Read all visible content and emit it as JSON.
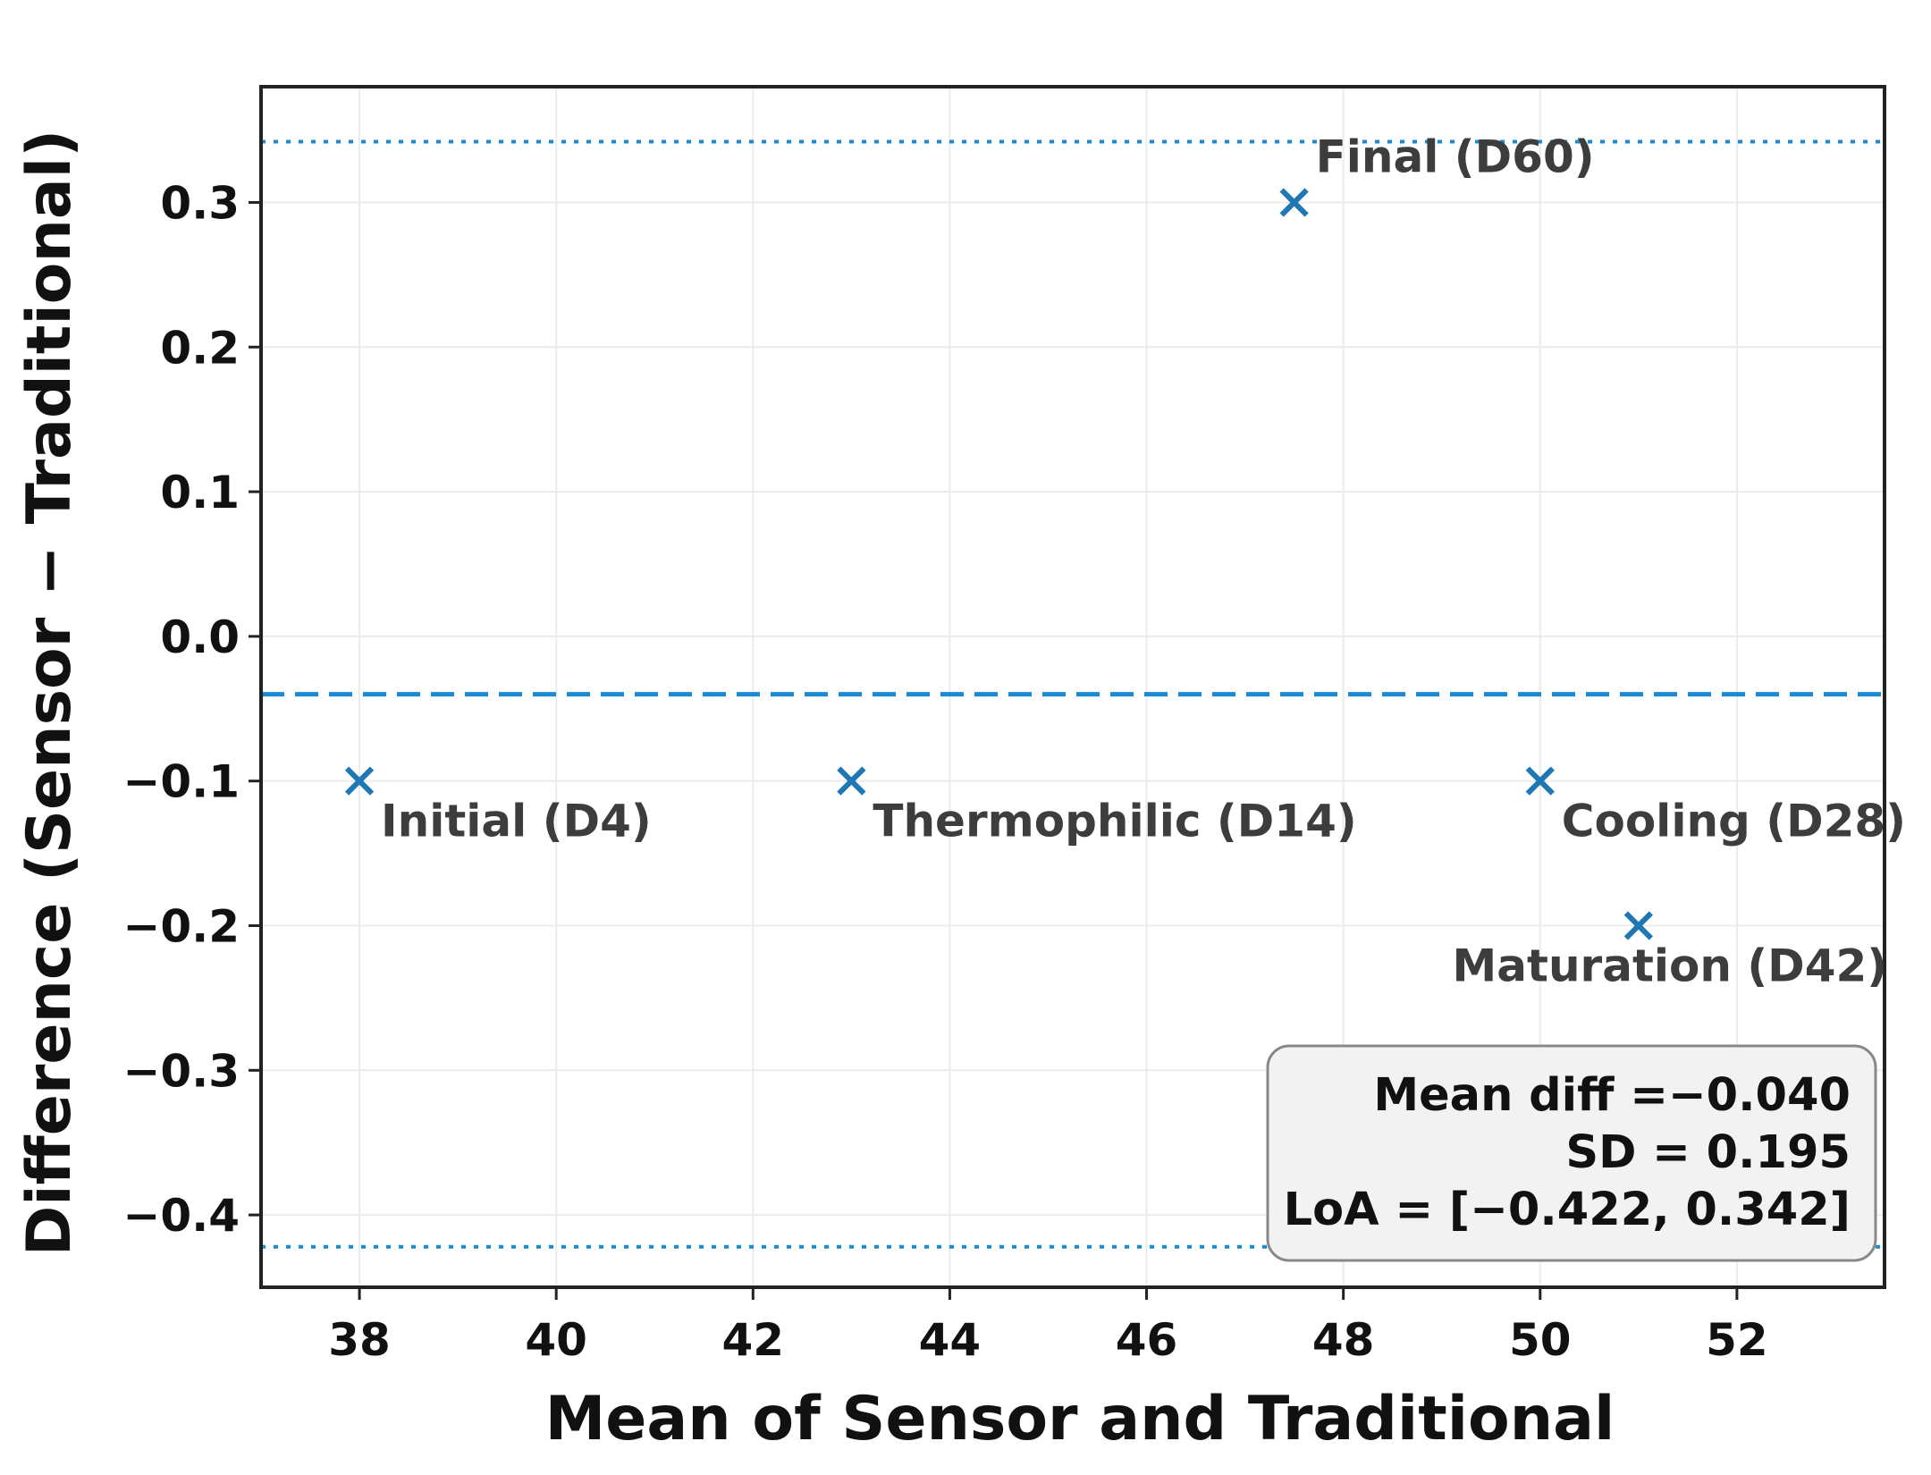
{
  "chart_data": {
    "type": "scatter",
    "title": "",
    "xlabel": "Mean of Sensor and Traditional",
    "ylabel": "Difference (Sensor − Traditional)",
    "xlim": [
      37.0,
      53.5
    ],
    "ylim": [
      -0.45,
      0.38
    ],
    "xticks": [
      38,
      40,
      42,
      44,
      46,
      48,
      50,
      52
    ],
    "xtick_labels": [
      "38",
      "40",
      "42",
      "44",
      "46",
      "48",
      "50",
      "52"
    ],
    "yticks": [
      0.3,
      0.2,
      0.1,
      0.0,
      -0.1,
      -0.2,
      -0.3,
      -0.4
    ],
    "ytick_labels": [
      "0.3",
      "0.2",
      "0.1",
      "0.0",
      "−0.1",
      "−0.2",
      "−0.3",
      "−0.4"
    ],
    "grid": true,
    "marker": "x",
    "points": [
      {
        "label": "Initial (D4)",
        "x": 38.0,
        "y": -0.1,
        "anchor": "below-right"
      },
      {
        "label": "Thermophilic (D14)",
        "x": 43.0,
        "y": -0.1,
        "anchor": "below-right"
      },
      {
        "label": "Cooling (D28)",
        "x": 50.0,
        "y": -0.1,
        "anchor": "below-right"
      },
      {
        "label": "Maturation (D42)",
        "x": 51.0,
        "y": -0.2,
        "anchor": "below"
      },
      {
        "label": "Final (D60)",
        "x": 47.5,
        "y": 0.3,
        "anchor": "above-right"
      }
    ],
    "reference_lines": [
      {
        "name": "mean-difference",
        "y": -0.04,
        "style": "dashed"
      },
      {
        "name": "upper-limit-of-agreement",
        "y": 0.342,
        "style": "dotted"
      },
      {
        "name": "lower-limit-of-agreement",
        "y": -0.422,
        "style": "dotted"
      }
    ],
    "stats_box": {
      "placement": "lower-right",
      "lines": [
        "Mean diff =−0.040",
        "SD = 0.195",
        "LoA = [−0.422, 0.342]"
      ]
    },
    "colors": {
      "marker": "#1f77b4",
      "reference_line": "#1a8ad4",
      "axes": "#222222",
      "grid": "#ececec",
      "stats_box_fill": "#f2f2f2",
      "stats_box_border": "#888888"
    }
  }
}
